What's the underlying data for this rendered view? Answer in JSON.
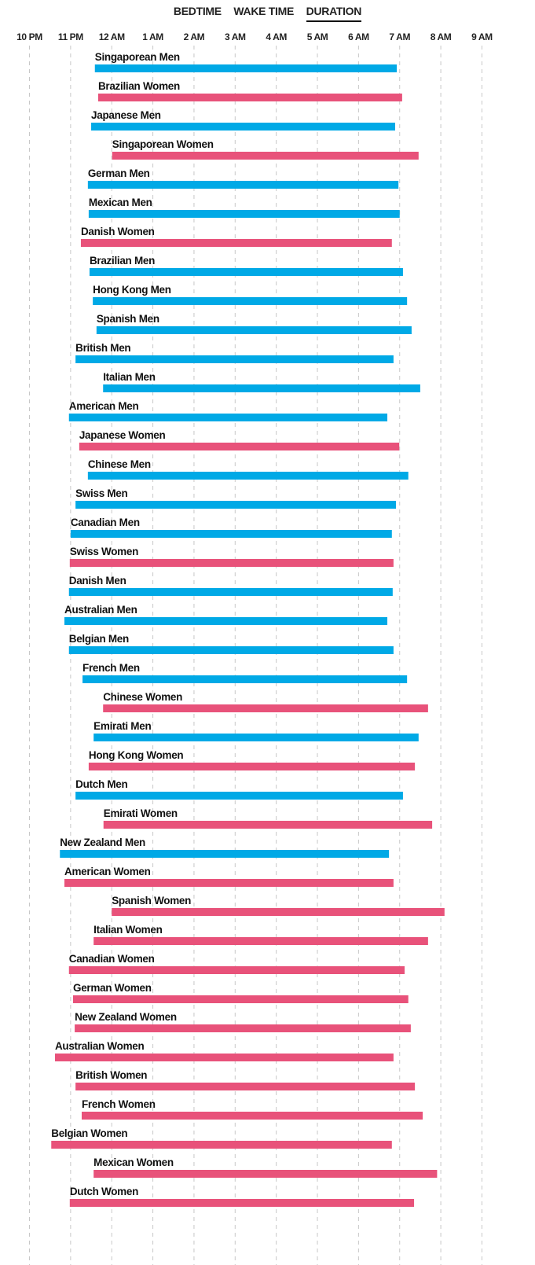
{
  "tabs": [
    {
      "label": "BEDTIME",
      "active": false
    },
    {
      "label": "WAKE TIME",
      "active": false
    },
    {
      "label": "DURATION",
      "active": true
    }
  ],
  "chart_data": {
    "type": "bar",
    "orientation": "horizontal-range",
    "x_unit": "clock hour (22 = 10 PM, 24 = 12 AM, 31 = 7 AM)",
    "xlim": [
      22,
      33
    ],
    "x_ticks": [
      {
        "value": 22,
        "label": "10 PM"
      },
      {
        "value": 23,
        "label": "11 PM"
      },
      {
        "value": 24,
        "label": "12 AM"
      },
      {
        "value": 25,
        "label": "1 AM"
      },
      {
        "value": 26,
        "label": "2 AM"
      },
      {
        "value": 27,
        "label": "3 AM"
      },
      {
        "value": 28,
        "label": "4 AM"
      },
      {
        "value": 29,
        "label": "5 AM"
      },
      {
        "value": 30,
        "label": "6 AM"
      },
      {
        "value": 31,
        "label": "7 AM"
      },
      {
        "value": 32,
        "label": "8 AM"
      },
      {
        "value": 33,
        "label": "9 AM"
      }
    ],
    "grid": true,
    "colors": {
      "Men": "#00a9e6",
      "Women": "#e8527a"
    },
    "rows": [
      {
        "name": "Singaporean Men",
        "group": "Men",
        "bedtime": 23.59,
        "wake": 30.93
      },
      {
        "name": "Brazilian Women",
        "group": "Women",
        "bedtime": 23.67,
        "wake": 31.06
      },
      {
        "name": "Japanese Men",
        "group": "Men",
        "bedtime": 23.5,
        "wake": 30.89
      },
      {
        "name": "Singaporean Women",
        "group": "Women",
        "bedtime": 24.01,
        "wake": 31.46
      },
      {
        "name": "German Men",
        "group": "Men",
        "bedtime": 23.42,
        "wake": 30.97
      },
      {
        "name": "Mexican Men",
        "group": "Men",
        "bedtime": 23.44,
        "wake": 31.0
      },
      {
        "name": "Danish Women",
        "group": "Women",
        "bedtime": 23.25,
        "wake": 30.81
      },
      {
        "name": "Brazilian Men",
        "group": "Men",
        "bedtime": 23.46,
        "wake": 31.08
      },
      {
        "name": "Hong Kong Men",
        "group": "Men",
        "bedtime": 23.54,
        "wake": 31.18
      },
      {
        "name": "Spanish Men",
        "group": "Men",
        "bedtime": 23.63,
        "wake": 31.29
      },
      {
        "name": "British Men",
        "group": "Men",
        "bedtime": 23.12,
        "wake": 30.85
      },
      {
        "name": "Italian Men",
        "group": "Men",
        "bedtime": 23.79,
        "wake": 31.5
      },
      {
        "name": "American Men",
        "group": "Men",
        "bedtime": 22.96,
        "wake": 30.7
      },
      {
        "name": "Japanese Women",
        "group": "Women",
        "bedtime": 23.21,
        "wake": 30.99
      },
      {
        "name": "Chinese Men",
        "group": "Men",
        "bedtime": 23.42,
        "wake": 31.21
      },
      {
        "name": "Swiss Men",
        "group": "Men",
        "bedtime": 23.12,
        "wake": 30.91
      },
      {
        "name": "Canadian Men",
        "group": "Men",
        "bedtime": 23.0,
        "wake": 30.81
      },
      {
        "name": "Swiss Women",
        "group": "Women",
        "bedtime": 22.98,
        "wake": 30.85
      },
      {
        "name": "Danish Men",
        "group": "Men",
        "bedtime": 22.96,
        "wake": 30.83
      },
      {
        "name": "Australian Men",
        "group": "Men",
        "bedtime": 22.85,
        "wake": 30.7
      },
      {
        "name": "Belgian Men",
        "group": "Men",
        "bedtime": 22.96,
        "wake": 30.85
      },
      {
        "name": "French Men",
        "group": "Men",
        "bedtime": 23.29,
        "wake": 31.18
      },
      {
        "name": "Chinese Women",
        "group": "Women",
        "bedtime": 23.79,
        "wake": 31.69
      },
      {
        "name": "Emirati Men",
        "group": "Men",
        "bedtime": 23.56,
        "wake": 31.46
      },
      {
        "name": "Hong Kong Women",
        "group": "Women",
        "bedtime": 23.44,
        "wake": 31.37
      },
      {
        "name": "Dutch Men",
        "group": "Men",
        "bedtime": 23.12,
        "wake": 31.08
      },
      {
        "name": "Emirati Women",
        "group": "Women",
        "bedtime": 23.8,
        "wake": 31.79
      },
      {
        "name": "New Zealand Men",
        "group": "Men",
        "bedtime": 22.74,
        "wake": 30.74
      },
      {
        "name": "American Women",
        "group": "Women",
        "bedtime": 22.85,
        "wake": 30.85
      },
      {
        "name": "Spanish Women",
        "group": "Women",
        "bedtime": 24.0,
        "wake": 32.09
      },
      {
        "name": "Italian Women",
        "group": "Women",
        "bedtime": 23.56,
        "wake": 31.69
      },
      {
        "name": "Canadian Women",
        "group": "Women",
        "bedtime": 22.96,
        "wake": 31.12
      },
      {
        "name": "German Women",
        "group": "Women",
        "bedtime": 23.06,
        "wake": 31.21
      },
      {
        "name": "New Zealand Women",
        "group": "Women",
        "bedtime": 23.1,
        "wake": 31.27
      },
      {
        "name": "Australian Women",
        "group": "Women",
        "bedtime": 22.62,
        "wake": 30.85
      },
      {
        "name": "British Women",
        "group": "Women",
        "bedtime": 23.12,
        "wake": 31.37
      },
      {
        "name": "French Women",
        "group": "Women",
        "bedtime": 23.27,
        "wake": 31.56
      },
      {
        "name": "Belgian Women",
        "group": "Women",
        "bedtime": 22.53,
        "wake": 30.81
      },
      {
        "name": "Mexican Women",
        "group": "Women",
        "bedtime": 23.56,
        "wake": 31.91
      },
      {
        "name": "Dutch Women",
        "group": "Women",
        "bedtime": 22.98,
        "wake": 31.35
      }
    ]
  }
}
